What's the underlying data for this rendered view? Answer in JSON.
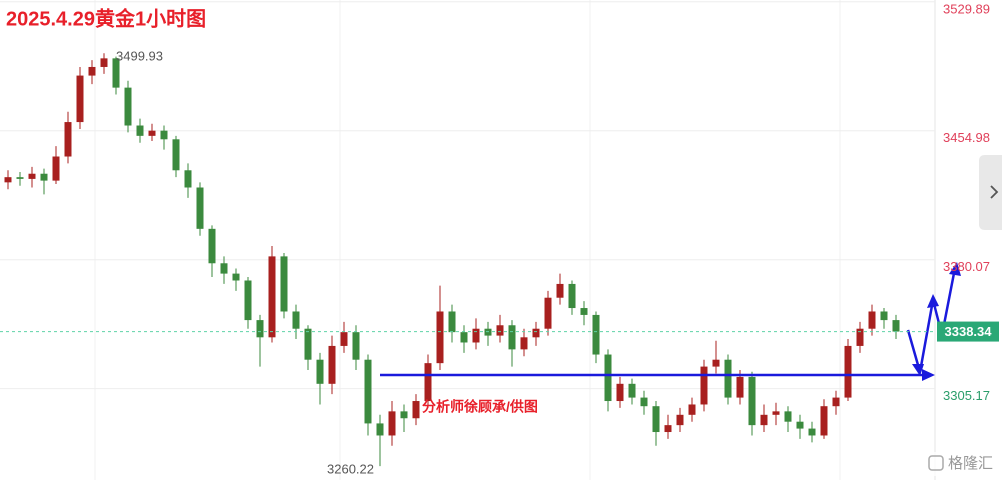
{
  "chart_data": {
    "type": "candlestick",
    "title": "2025.4.29黄金1小时图",
    "annotation": "分析师徐顾承/供图",
    "watermark": "格隆汇",
    "up_color": "#a8201f",
    "down_color": "#3b8a3e",
    "ylim": [
      3252.14,
      3530.89
    ],
    "yticks": [
      3305.17,
      3380.07,
      3454.98,
      3529.89
    ],
    "open": [
      3425,
      3428,
      3427,
      3430,
      3426,
      3440,
      3460,
      3487,
      3492,
      3497,
      3480,
      3458,
      3452,
      3455,
      3450,
      3432,
      3422,
      3398,
      3378,
      3372,
      3368,
      3345,
      3335,
      3382,
      3350,
      3340,
      3322,
      3308,
      3330,
      3338,
      3322,
      3285,
      3278,
      3292,
      3288,
      3298,
      3320,
      3350,
      3338,
      3332,
      3340,
      3336,
      3342,
      3328,
      3335,
      3340,
      3358,
      3366,
      3352,
      3348,
      3325,
      3298,
      3308,
      3300,
      3295,
      3280,
      3284,
      3290,
      3296,
      3318,
      3322,
      3300,
      3312,
      3284,
      3290,
      3292,
      3286,
      3282,
      3278,
      3295,
      3300,
      3330,
      3340,
      3350,
      3345
    ],
    "high": [
      3432,
      3431,
      3434,
      3433,
      3446,
      3466,
      3492,
      3496,
      3499.93,
      3498,
      3484,
      3462,
      3459,
      3458,
      3452,
      3436,
      3425,
      3400,
      3382,
      3375,
      3370,
      3348,
      3388,
      3384,
      3354,
      3342,
      3326,
      3336,
      3344,
      3342,
      3325,
      3290,
      3298,
      3296,
      3302,
      3325,
      3365,
      3354,
      3342,
      3346,
      3344,
      3348,
      3345,
      3340,
      3344,
      3362,
      3372,
      3368,
      3356,
      3350,
      3328,
      3312,
      3311,
      3304,
      3298,
      3290,
      3294,
      3300,
      3322,
      3333,
      3325,
      3316,
      3315,
      3296,
      3297,
      3295,
      3290,
      3286,
      3299,
      3304,
      3334,
      3344,
      3354,
      3352,
      3348
    ],
    "low": [
      3421,
      3423,
      3422,
      3418,
      3424,
      3436,
      3456,
      3482,
      3488,
      3476,
      3454,
      3448,
      3449,
      3444,
      3428,
      3416,
      3394,
      3370,
      3366,
      3362,
      3340,
      3318,
      3332,
      3346,
      3334,
      3316,
      3296,
      3302,
      3326,
      3316,
      3278,
      3260.22,
      3272,
      3280,
      3284,
      3294,
      3316,
      3332,
      3326,
      3328,
      3330,
      3332,
      3318,
      3324,
      3330,
      3336,
      3354,
      3348,
      3342,
      3320,
      3292,
      3294,
      3296,
      3290,
      3272,
      3276,
      3280,
      3286,
      3292,
      3314,
      3296,
      3296,
      3278,
      3280,
      3284,
      3280,
      3276,
      3274,
      3276,
      3290,
      3298,
      3326,
      3336,
      3340,
      3334
    ],
    "close": [
      3428,
      3427,
      3430,
      3426,
      3440,
      3460,
      3487,
      3492,
      3497,
      3480,
      3458,
      3452,
      3455,
      3450,
      3432,
      3422,
      3398,
      3378,
      3372,
      3368,
      3345,
      3335,
      3382,
      3350,
      3340,
      3322,
      3308,
      3330,
      3338,
      3322,
      3285,
      3278,
      3292,
      3288,
      3298,
      3320,
      3350,
      3338,
      3332,
      3340,
      3336,
      3342,
      3328,
      3335,
      3340,
      3358,
      3366,
      3352,
      3348,
      3325,
      3298,
      3308,
      3300,
      3295,
      3280,
      3284,
      3290,
      3296,
      3318,
      3322,
      3300,
      3312,
      3284,
      3290,
      3292,
      3286,
      3282,
      3278,
      3295,
      3300,
      3330,
      3340,
      3350,
      3345,
      3338.34
    ]
  }
}
